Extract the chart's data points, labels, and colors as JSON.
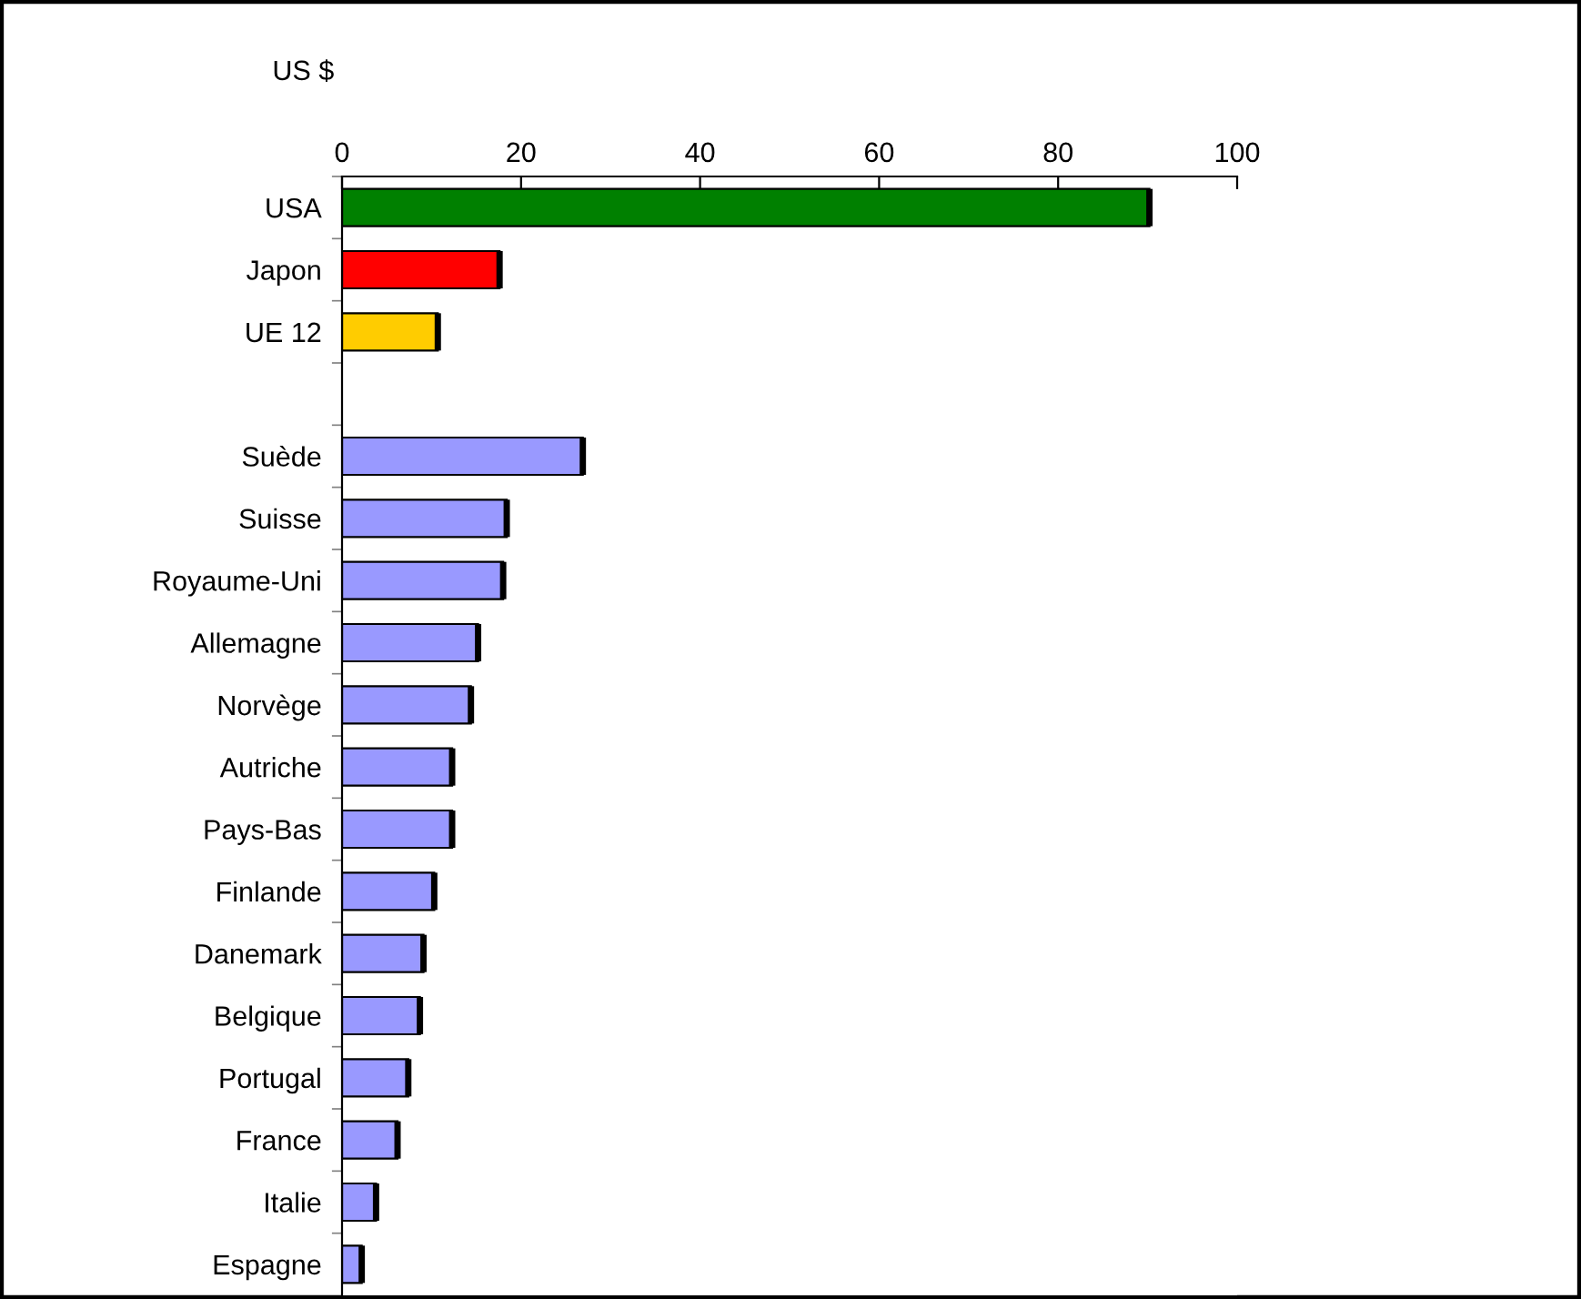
{
  "chart_data": {
    "type": "bar",
    "orientation": "horizontal",
    "xlabel": "US $",
    "categories": [
      "USA",
      "Japon",
      "UE 12",
      null,
      "Suède",
      "Suisse",
      "Royaume-Uni",
      "Allemagne",
      "Norvège",
      "Autriche",
      "Pays-Bas",
      "Finlande",
      "Danemark",
      "Belgique",
      "Portugal",
      "France",
      "Italie",
      "Espagne"
    ],
    "values": [
      90.2,
      17.6,
      10.7,
      null,
      26.9,
      18.4,
      18.0,
      15.2,
      14.4,
      12.3,
      12.3,
      10.3,
      9.1,
      8.7,
      7.4,
      6.2,
      3.8,
      2.2
    ],
    "colors": [
      "#008000",
      "#ff0000",
      "#ffcc00",
      null,
      "#9999ff",
      "#9999ff",
      "#9999ff",
      "#9999ff",
      "#9999ff",
      "#9999ff",
      "#9999ff",
      "#9999ff",
      "#9999ff",
      "#9999ff",
      "#9999ff",
      "#9999ff",
      "#9999ff",
      "#9999ff"
    ],
    "xlim": [
      0,
      100
    ],
    "xticks": [
      0,
      20,
      40,
      60,
      80,
      100
    ],
    "grid": false,
    "legend": false
  }
}
